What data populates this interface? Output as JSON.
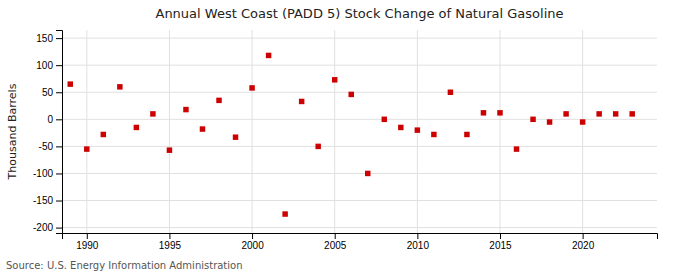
{
  "chart_data": {
    "type": "scatter",
    "title": "Annual West Coast (PADD 5) Stock Change of Natural Gasoline",
    "ylabel": "Thousand Barrels",
    "source": "Source: U.S. Energy Information Administration",
    "x": [
      1989,
      1990,
      1991,
      1992,
      1993,
      1994,
      1995,
      1996,
      1997,
      1998,
      1999,
      2000,
      2001,
      2002,
      2003,
      2004,
      2005,
      2006,
      2007,
      2008,
      2009,
      2010,
      2011,
      2012,
      2013,
      2014,
      2015,
      2016,
      2017,
      2018,
      2019,
      2020,
      2021,
      2022,
      2023
    ],
    "values": [
      65,
      -55,
      -28,
      60,
      -15,
      10,
      -57,
      18,
      -18,
      35,
      -33,
      58,
      118,
      -175,
      33,
      -50,
      73,
      46,
      -100,
      0,
      -15,
      -20,
      -28,
      50,
      -28,
      12,
      12,
      -55,
      0,
      -5,
      10,
      -5,
      10,
      10,
      10
    ],
    "color": "#cc0000",
    "marker": "square",
    "xlim": [
      1988.5,
      2024.5
    ],
    "ylim": [
      -210,
      165
    ],
    "xticks": [
      1990,
      1995,
      2000,
      2005,
      2010,
      2015,
      2020
    ],
    "yticks": [
      -200,
      -150,
      -100,
      -50,
      0,
      50,
      100,
      150
    ],
    "grid": true
  }
}
